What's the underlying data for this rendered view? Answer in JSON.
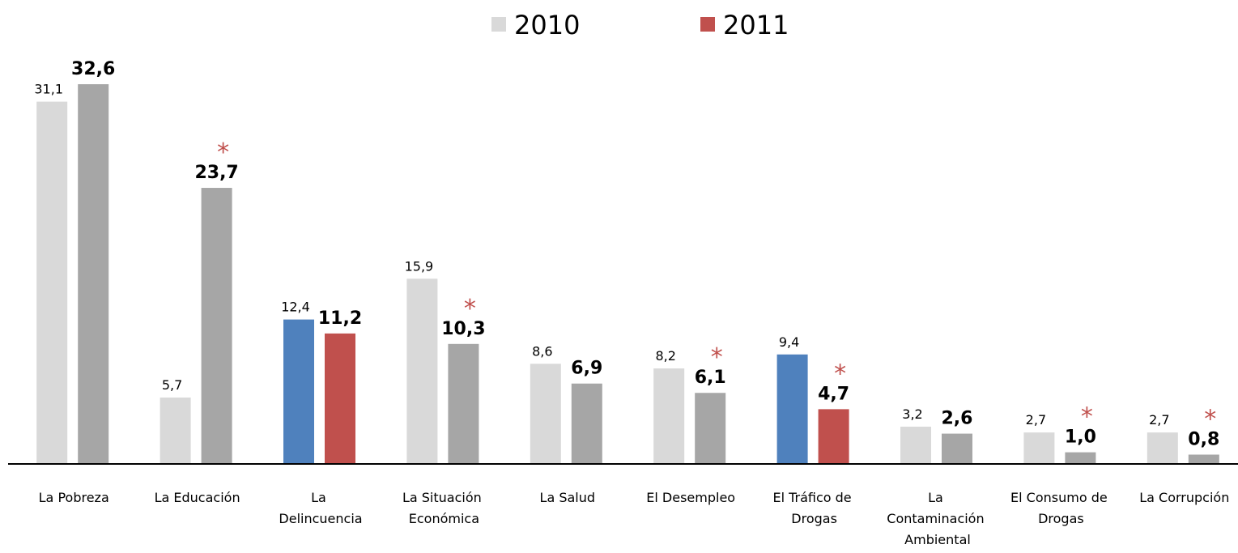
{
  "chart_data": {
    "type": "bar",
    "categories": [
      "La Pobreza",
      "La Educación",
      "La Delincuencia",
      "La Situación Económica",
      "La Salud",
      "El Desempleo",
      "El Tráfico de Drogas",
      "La Contaminación Ambiental",
      "El Consumo de Drogas",
      "La Corrupción"
    ],
    "series": [
      {
        "name": "2010",
        "color": "#d9d9d9",
        "colors": [
          "#d9d9d9",
          "#d9d9d9",
          "#4f81bd",
          "#d9d9d9",
          "#d9d9d9",
          "#d9d9d9",
          "#4f81bd",
          "#d9d9d9",
          "#d9d9d9",
          "#d9d9d9"
        ],
        "values": [
          31.1,
          5.7,
          12.4,
          15.9,
          8.6,
          8.2,
          9.4,
          3.2,
          2.7,
          2.7
        ],
        "value_labels": [
          "31,1",
          "5,7",
          "12,4",
          "15,9",
          "8,6",
          "8,2",
          "9,4",
          "3,2",
          "2,7",
          "2,7"
        ]
      },
      {
        "name": "2011",
        "color": "#c0504d",
        "colors": [
          "#a6a6a6",
          "#a6a6a6",
          "#c0504d",
          "#a6a6a6",
          "#a6a6a6",
          "#a6a6a6",
          "#c0504d",
          "#a6a6a6",
          "#a6a6a6",
          "#a6a6a6"
        ],
        "values": [
          32.6,
          23.7,
          11.2,
          10.3,
          6.9,
          6.1,
          4.7,
          2.6,
          1.0,
          0.8
        ],
        "value_labels": [
          "32,6",
          "23,7",
          "11,2",
          "10,3",
          "6,9",
          "6,1",
          "4,7",
          "2,6",
          "1,0",
          "0,8"
        ]
      }
    ],
    "annotations": [
      {
        "category": "La Educación",
        "series": "2011",
        "text": "*"
      },
      {
        "category": "La Situación Económica",
        "series": "2011",
        "text": "*"
      },
      {
        "category": "El Desempleo",
        "series": "2011",
        "text": "*"
      },
      {
        "category": "El Tráfico de Drogas",
        "series": "2011",
        "text": "*"
      },
      {
        "category": "El Consumo de Drogas",
        "series": "2011",
        "text": "*"
      },
      {
        "category": "La Corrupción",
        "series": "2011",
        "text": "*"
      }
    ],
    "legend": "top"
  }
}
